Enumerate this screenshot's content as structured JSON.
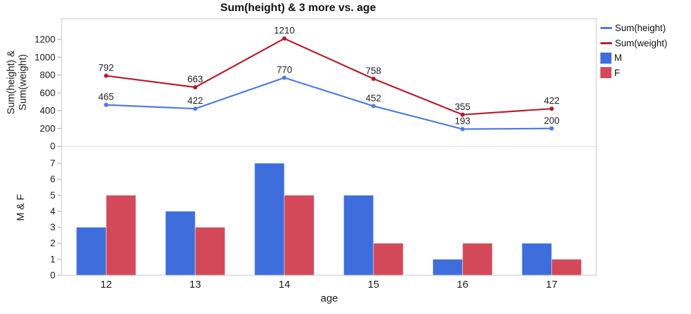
{
  "title": "Sum(height) & 3 more vs. age",
  "chart_data": {
    "type": "combo",
    "x_label": "age",
    "categories": [
      12,
      13,
      14,
      15,
      16,
      17
    ],
    "panels": [
      {
        "type": "line",
        "y_label": "Sum(height) &\nSum(weight)",
        "y_ticks": [
          0,
          200,
          400,
          600,
          800,
          1000,
          1200
        ],
        "ylim": [
          0,
          1400
        ],
        "grid": false,
        "point_labels": true,
        "series": [
          {
            "name": "Sum(height)",
            "color": "#4F7BE0",
            "values": [
              465,
              422,
              770,
              452,
              193,
              200
            ]
          },
          {
            "name": "Sum(weight)",
            "color": "#B01F30",
            "values": [
              792,
              663,
              1210,
              758,
              355,
              422
            ]
          }
        ]
      },
      {
        "type": "bar",
        "y_label": "M & F",
        "y_ticks": [
          0,
          1,
          2,
          3,
          4,
          5,
          6,
          7
        ],
        "ylim": [
          0,
          7.8
        ],
        "grid": false,
        "series": [
          {
            "name": "M",
            "color": "#3E6EDB",
            "values": [
              3,
              4,
              7,
              5,
              1,
              2
            ]
          },
          {
            "name": "F",
            "color": "#D4495A",
            "values": [
              5,
              3,
              5,
              2,
              2,
              1
            ]
          }
        ]
      }
    ],
    "legend": {
      "position": "right",
      "items": [
        {
          "label": "Sum(height)",
          "swatch": "line",
          "color": "#4F7BE0"
        },
        {
          "label": "Sum(weight)",
          "swatch": "line",
          "color": "#B01F30"
        },
        {
          "label": "M",
          "swatch": "square",
          "color": "#3E6EDB"
        },
        {
          "label": "F",
          "swatch": "square",
          "color": "#D4495A"
        }
      ]
    },
    "frame_color": "#C9C9C9",
    "divider_color": "#E2E2E2",
    "tick_color": "#ABABAB",
    "text_color": "#1A1A1A"
  }
}
